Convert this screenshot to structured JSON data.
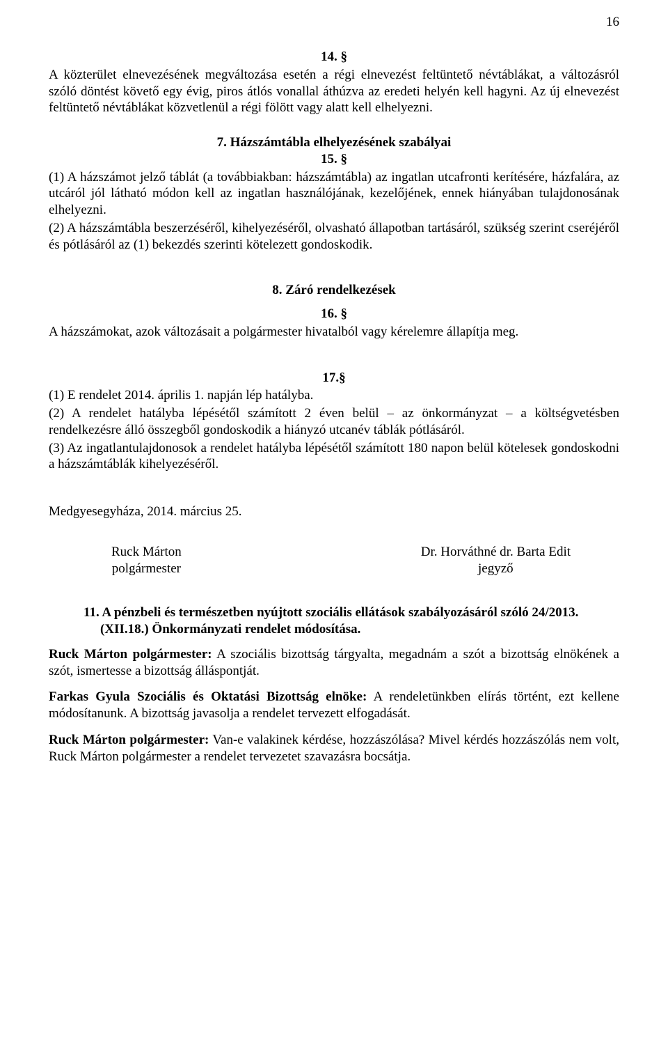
{
  "pageNumber": "16",
  "s14": {
    "num": "14. §",
    "p1": "A közterület elnevezésének megváltozása esetén a régi elnevezést feltüntető névtáblákat, a változásról szóló döntést követő egy évig, piros átlós vonallal áthúzva az eredeti helyén kell hagyni. Az új elnevezést feltüntető névtáblákat közvetlenül a régi fölött vagy alatt kell elhelyezni."
  },
  "h7": {
    "title": "7.   Házszámtábla elhelyezésének szabályai",
    "num": "15. §",
    "p1": "(1) A házszámot jelző táblát (a továbbiakban: házszámtábla) az ingatlan utcafronti kerítésére, házfalára, az utcáról jól látható módon kell az ingatlan használójának, kezelőjének, ennek hiányában tulajdonosának elhelyezni.",
    "p2": "(2) A házszámtábla beszerzéséről, kihelyezéséről, olvasható állapotban tartásáról, szükség szerint cseréjéről és pótlásáról az (1) bekezdés szerinti kötelezett gondoskodik."
  },
  "h8": {
    "title": "8. Záró rendelkezések",
    "num16": "16. §",
    "p16": "A házszámokat, azok változásait a polgármester hivatalból vagy kérelemre állapítja meg.",
    "num17": "17.§",
    "p17_1": "(1) E rendelet 2014. április 1. napján lép hatályba.",
    "p17_2": "(2) A rendelet hatályba lépésétől számított 2 éven belül – az önkormányzat – a költségvetésben rendelkezésre álló összegből gondoskodik a hiányzó utcanév táblák pótlásáról.",
    "p17_3": "(3) Az ingatlantulajdonosok a rendelet hatályba lépésétől számított 180 napon belül kötelesek gondoskodni a házszámtáblák kihelyezéséről."
  },
  "dateLine": "Medgyesegyháza, 2014. március 25.",
  "sigs": {
    "left_name": "Ruck Márton",
    "left_title": "polgármester",
    "right_name": "Dr. Horváthné dr. Barta Edit",
    "right_title": "jegyző"
  },
  "agenda11": {
    "title": "11. A pénzbeli és természetben nyújtott szociális ellátások szabályozásáról szóló 24/2013.(XII.18.) Önkormányzati rendelet módosítása.",
    "p1_lead": "Ruck Márton polgármester:",
    "p1_body": " A szociális bizottság tárgyalta, megadnám a szót a bizottság elnökének a szót, ismertesse a bizottság álláspontját.",
    "p2_lead": "Farkas Gyula Szociális és Oktatási Bizottság elnöke:",
    "p2_body": " A rendeletünkben elírás történt, ezt kellene módosítanunk. A bizottság javasolja a rendelet tervezett elfogadását.",
    "p3_lead": "Ruck Márton polgármester:",
    "p3_body": " Van-e valakinek kérdése, hozzászólása? Mivel kérdés hozzászólás nem volt, Ruck Márton polgármester a rendelet tervezetet szavazásra bocsátja."
  }
}
